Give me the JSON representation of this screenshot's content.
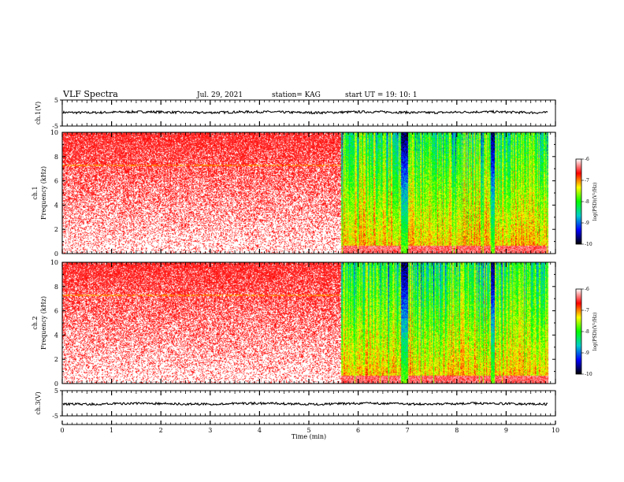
{
  "chart_data": {
    "type": "heatmap",
    "title": "VLF Spectra",
    "header": {
      "date": "Jul. 29, 2021",
      "station": "station= KAG",
      "start": "start UT = 19: 10: 1"
    },
    "xlabel": "Time (min)",
    "xlim": [
      0,
      10
    ],
    "xticks": [
      0,
      1,
      2,
      3,
      4,
      5,
      6,
      7,
      8,
      9,
      10
    ],
    "panels": [
      {
        "id": "ch1-waveform",
        "type": "line",
        "ylabel": "ch.1(V)",
        "ylim": [
          -5,
          5
        ],
        "yticks": [
          5,
          -5
        ],
        "level": 0.3,
        "end_time": 9.85
      },
      {
        "id": "ch1-spectrogram",
        "type": "heatmap",
        "ylabel": "ch.1 Frequency (kHz)",
        "ylim": [
          0,
          10
        ],
        "yticks": [
          0,
          2,
          4,
          6,
          8,
          10
        ],
        "end_time": 9.85,
        "quiet_until": 5.65,
        "strong_bursts": [
          6.9,
          6.96,
          8.72
        ],
        "line_freq": 7.3,
        "colorbar": {
          "label": "log(PSD)(V²/Hz)",
          "range": [
            -10,
            -6
          ],
          "ticks": [
            -6,
            -7,
            -8,
            -9,
            -10
          ],
          "colors": [
            "#000000",
            "#0000ff",
            "#00cccc",
            "#00ff00",
            "#ffff00",
            "#ff0000",
            "#ffffff"
          ]
        }
      },
      {
        "id": "ch2-spectrogram",
        "type": "heatmap",
        "ylabel": "ch.2 Frequency (kHz)",
        "ylim": [
          0,
          10
        ],
        "yticks": [
          0,
          2,
          4,
          6,
          8,
          10
        ],
        "end_time": 9.85,
        "quiet_until": 5.65,
        "strong_bursts": [
          6.9,
          6.96,
          8.72
        ],
        "line_freq": 7.3,
        "colorbar": {
          "label": "log(PSD)(V²/Hz)",
          "range": [
            -10,
            -6
          ],
          "ticks": [
            -6,
            -7,
            -8,
            -9,
            -10
          ],
          "colors": [
            "#000000",
            "#0000ff",
            "#00cccc",
            "#00ff00",
            "#ffff00",
            "#ff0000",
            "#ffffff"
          ]
        }
      },
      {
        "id": "ch3-waveform",
        "type": "line",
        "ylabel": "ch.3(V)",
        "ylim": [
          -5,
          5
        ],
        "yticks": [
          5,
          -5
        ],
        "level": -0.2,
        "end_time": 9.85
      }
    ]
  }
}
